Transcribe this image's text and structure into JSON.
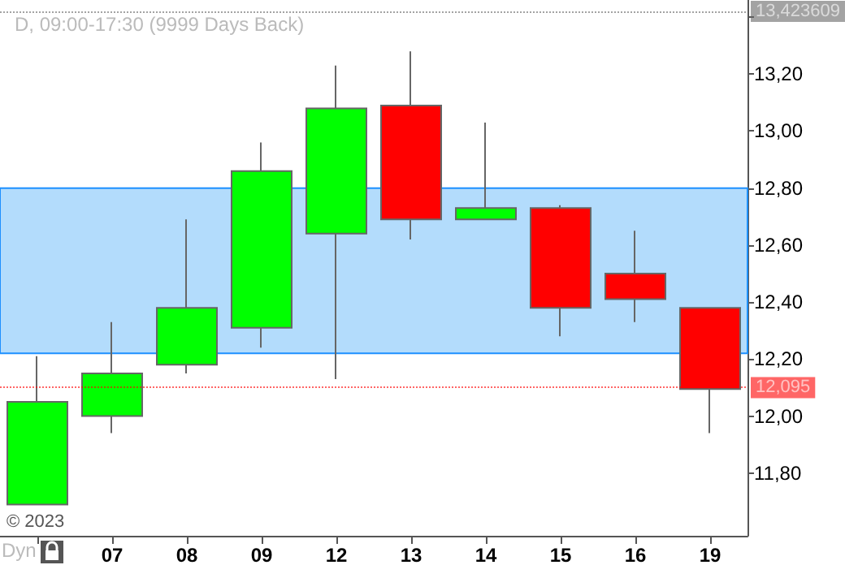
{
  "chart_data": {
    "type": "candlestick",
    "title": "D, 09:00-17:30 (9999 Days Back)",
    "categories": [
      null,
      "07",
      "08",
      "09",
      "12",
      "13",
      "14",
      "15",
      "16",
      "19"
    ],
    "ohlc": [
      [
        11.69,
        12.21,
        11.69,
        12.05
      ],
      [
        12.0,
        12.33,
        11.94,
        12.15
      ],
      [
        12.18,
        12.69,
        12.15,
        12.38
      ],
      [
        12.31,
        12.96,
        12.24,
        12.86
      ],
      [
        12.64,
        13.23,
        12.13,
        13.08
      ],
      [
        13.09,
        13.28,
        12.62,
        12.69
      ],
      [
        12.69,
        13.03,
        12.69,
        12.73
      ],
      [
        12.73,
        12.74,
        12.28,
        12.38
      ],
      [
        12.5,
        12.65,
        12.33,
        12.41
      ],
      [
        12.38,
        12.38,
        11.94,
        12.095
      ]
    ],
    "colors": [
      "#00ff00",
      "#00ff00",
      "#00ff00",
      "#00ff00",
      "#00ff00",
      "#ff0000",
      "#00ff00",
      "#ff0000",
      "#ff0000",
      "#ff0000"
    ],
    "ylim": [
      11.58,
      13.46
    ],
    "yticks": [
      {
        "value": 11.8,
        "label": "11,80"
      },
      {
        "value": 12.0,
        "label": "12,00"
      },
      {
        "value": 12.2,
        "label": "12,20"
      },
      {
        "value": 12.4,
        "label": "12,40"
      },
      {
        "value": 12.6,
        "label": "12,60"
      },
      {
        "value": 12.8,
        "label": "12,80"
      },
      {
        "value": 13.0,
        "label": "13,00"
      },
      {
        "value": 13.2,
        "label": "13,20"
      },
      {
        "value": 13.4,
        "label": null
      }
    ],
    "ref_lines": [
      {
        "axis": "y",
        "value": 13.423609,
        "label": "13,423609",
        "color": "#666666"
      },
      {
        "axis": "y",
        "value": 12.095,
        "label": "12,095",
        "color": "#ff0000"
      }
    ],
    "bands": [
      {
        "axis": "y",
        "from": 12.22,
        "to": 12.8,
        "color": "#b3dcfc"
      }
    ],
    "annotations": [
      "© 2023",
      "Dyn"
    ],
    "grid": false
  }
}
